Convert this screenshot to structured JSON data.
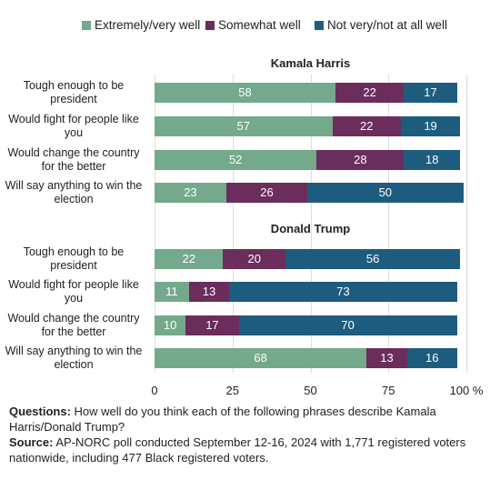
{
  "chart_data": [
    {
      "type": "bar",
      "orientation": "horizontal",
      "stacked": true,
      "title": "Kamala Harris",
      "categories": [
        "Tough enough to be president",
        "Would fight for people like you",
        "Would change the country for the better",
        "Will say anything to win the election"
      ],
      "series": [
        {
          "name": "Extremely/very well",
          "color": "#74a98b",
          "values": [
            58,
            57,
            52,
            23
          ]
        },
        {
          "name": "Somewhat well",
          "color": "#6b2d5c",
          "values": [
            22,
            22,
            28,
            26
          ]
        },
        {
          "name": "Not very/not at all well",
          "color": "#1d5c7e",
          "values": [
            17,
            19,
            18,
            50
          ]
        }
      ],
      "xlim": [
        0,
        100
      ],
      "xticks": [
        0,
        25,
        50,
        75,
        {
          "value": 100,
          "label": "100 %"
        }
      ],
      "grid": true,
      "legend": "top"
    },
    {
      "type": "bar",
      "orientation": "horizontal",
      "stacked": true,
      "title": "Donald Trump",
      "categories": [
        "Tough enough to be president",
        "Would fight for people like you",
        "Would change the country for the better",
        "Will say anything to win the election"
      ],
      "series": [
        {
          "color": "#74a98b",
          "values": [
            22,
            11,
            10,
            68
          ]
        },
        {
          "color": "#6b2d5c",
          "values": [
            20,
            13,
            17,
            13
          ]
        },
        {
          "color": "#1d5c7e",
          "values": [
            56,
            73,
            70,
            16
          ]
        }
      ]
    }
  ],
  "notes": {
    "questions_label": "Questions:",
    "questions": "How well do you think each of the following phrases describe Kamala Harris/Donald Trump?",
    "source_label": "Source:",
    "source": "AP-NORC poll conducted September 12-16, 2024 with 1,771 registered voters nationwide, including 477 Black registered voters."
  }
}
